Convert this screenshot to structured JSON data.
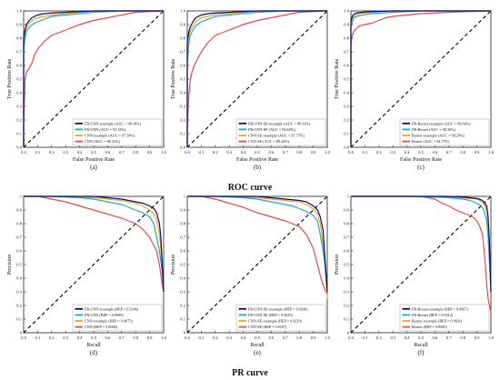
{
  "section_titles": {
    "roc": "ROC curve",
    "pr": "PR curve"
  },
  "colors": {
    "s1": "#0a0a6e",
    "s2": "#23a9bd",
    "s3": "#f2a629",
    "s4": "#e84a4a",
    "diagonal": "#000000"
  },
  "chart_data": [
    {
      "type": "line",
      "tag": "(a)",
      "curve": "roc",
      "xlabel": "False Positive Rate",
      "ylabel": "True Positive Rate",
      "xlim": [
        0,
        1
      ],
      "ylim": [
        0,
        1
      ],
      "legend": "bottom-right",
      "grid": false,
      "x_ticks": [
        "0.0",
        "0.1",
        "0.2",
        "0.3",
        "0.4",
        "0.5",
        "0.6",
        "0.7",
        "0.8",
        "0.9",
        "1.0"
      ],
      "y_ticks": [
        "0.0",
        "0.1",
        "0.2",
        "0.3",
        "0.4",
        "0.5",
        "0.6",
        "0.7",
        "0.8",
        "0.9",
        "1.0"
      ],
      "series": [
        {
          "name": "FR-CNN-resample  (AUC = 98.18%)",
          "x": [
            0,
            0,
            0.01,
            0.02,
            0.04,
            0.06,
            0.1,
            0.15,
            0.2,
            0.3,
            0.4,
            0.5,
            0.7,
            1.0
          ],
          "y": [
            0,
            0.8,
            0.86,
            0.9,
            0.93,
            0.95,
            0.97,
            0.98,
            0.985,
            0.99,
            0.995,
            1,
            1,
            1
          ]
        },
        {
          "name": "FR-CNN  (AUC = 93.33%)",
          "x": [
            0,
            0,
            0.01,
            0.02,
            0.04,
            0.06,
            0.1,
            0.15,
            0.2,
            0.3,
            0.4,
            0.5,
            0.7,
            1.0
          ],
          "y": [
            0,
            0.7,
            0.8,
            0.85,
            0.88,
            0.9,
            0.92,
            0.94,
            0.96,
            0.97,
            0.98,
            0.99,
            1,
            1
          ]
        },
        {
          "name": "CNN-resample  (AUC = 97.34%)",
          "x": [
            0,
            0,
            0.01,
            0.02,
            0.04,
            0.06,
            0.1,
            0.15,
            0.2,
            0.3,
            0.4,
            0.5,
            0.7,
            1.0
          ],
          "y": [
            0,
            0.78,
            0.84,
            0.88,
            0.91,
            0.93,
            0.95,
            0.96,
            0.97,
            0.98,
            0.99,
            1,
            1,
            1
          ]
        },
        {
          "name": "CNN  (AUC = 88.52%)",
          "x": [
            0,
            0,
            0.01,
            0.02,
            0.04,
            0.06,
            0.08,
            0.1,
            0.15,
            0.2,
            0.3,
            0.4,
            0.5,
            0.6,
            0.7,
            0.8,
            1.0
          ],
          "y": [
            0,
            0.15,
            0.5,
            0.55,
            0.58,
            0.62,
            0.68,
            0.72,
            0.78,
            0.82,
            0.86,
            0.9,
            0.93,
            0.95,
            0.97,
            0.99,
            1
          ]
        }
      ]
    },
    {
      "type": "line",
      "tag": "(b)",
      "curve": "roc",
      "xlabel": "False Positive Rate",
      "ylabel": "True Positive Rate",
      "xlim": [
        0,
        1
      ],
      "ylim": [
        0,
        1
      ],
      "legend": "bottom-right",
      "grid": false,
      "x_ticks": [
        "0.0",
        "0.1",
        "0.2",
        "0.3",
        "0.4",
        "0.5",
        "0.6",
        "0.7",
        "0.8",
        "0.9",
        "1.0"
      ],
      "y_ticks": [
        "0.0",
        "0.1",
        "0.2",
        "0.3",
        "0.4",
        "0.5",
        "0.6",
        "0.7",
        "0.8",
        "0.9",
        "1.0"
      ],
      "series": [
        {
          "name": "FR-CNN-SE-resample  (AUC = 98.33%)",
          "x": [
            0,
            0,
            0.01,
            0.02,
            0.04,
            0.06,
            0.1,
            0.15,
            0.2,
            0.3,
            0.4,
            0.5,
            0.7,
            1.0
          ],
          "y": [
            0,
            0.78,
            0.84,
            0.88,
            0.92,
            0.95,
            0.97,
            0.98,
            0.985,
            0.99,
            0.995,
            1,
            1,
            1
          ]
        },
        {
          "name": "FR-CNN-SE  (AUC = 96.65%)",
          "x": [
            0,
            0,
            0.01,
            0.02,
            0.04,
            0.06,
            0.1,
            0.15,
            0.2,
            0.3,
            0.4,
            0.5,
            0.7,
            1.0
          ],
          "y": [
            0,
            0.6,
            0.75,
            0.82,
            0.86,
            0.89,
            0.92,
            0.94,
            0.96,
            0.97,
            0.98,
            0.99,
            1,
            1
          ]
        },
        {
          "name": "CNN-SE-resample  (AUC = 97.77%)",
          "x": [
            0,
            0,
            0.01,
            0.02,
            0.04,
            0.06,
            0.1,
            0.15,
            0.2,
            0.3,
            0.4,
            0.5,
            0.7,
            1.0
          ],
          "y": [
            0,
            0.72,
            0.8,
            0.85,
            0.89,
            0.92,
            0.95,
            0.96,
            0.975,
            0.98,
            0.99,
            1,
            1,
            1
          ]
        },
        {
          "name": "CNN-SE  (AUC = 89.43%)",
          "x": [
            0,
            0,
            0.01,
            0.02,
            0.03,
            0.05,
            0.08,
            0.1,
            0.15,
            0.2,
            0.3,
            0.4,
            0.5,
            0.6,
            0.7,
            0.8,
            1.0
          ],
          "y": [
            0,
            0.12,
            0.36,
            0.48,
            0.54,
            0.6,
            0.66,
            0.7,
            0.77,
            0.82,
            0.86,
            0.9,
            0.93,
            0.95,
            0.97,
            0.99,
            1
          ]
        }
      ]
    },
    {
      "type": "line",
      "tag": "(c)",
      "curve": "roc",
      "xlabel": "False Positive Rate",
      "ylabel": "True Positive Rate",
      "xlim": [
        0,
        1
      ],
      "ylim": [
        0,
        1
      ],
      "legend": "bottom-right",
      "grid": false,
      "x_ticks": [
        "0.0",
        "0.1",
        "0.2",
        "0.3",
        "0.4",
        "0.5",
        "0.6",
        "0.7",
        "0.8",
        "0.9",
        "1.0"
      ],
      "y_ticks": [
        "0.0",
        "0.1",
        "0.2",
        "0.3",
        "0.4",
        "0.5",
        "0.6",
        "0.7",
        "0.8",
        "0.9",
        "1.0"
      ],
      "series": [
        {
          "name": "FR-Resnet-resample  (AUC = 99.64%)",
          "x": [
            0,
            0,
            0.01,
            0.02,
            0.04,
            0.08,
            0.15,
            0.3,
            0.5,
            1.0
          ],
          "y": [
            0,
            0.93,
            0.96,
            0.975,
            0.985,
            0.99,
            0.995,
            1,
            1,
            1
          ]
        },
        {
          "name": "FR-Resnet  (AUC = 98.30%)",
          "x": [
            0,
            0,
            0.01,
            0.02,
            0.04,
            0.08,
            0.15,
            0.3,
            0.5,
            1.0
          ],
          "y": [
            0,
            0.88,
            0.92,
            0.95,
            0.96,
            0.97,
            0.98,
            0.99,
            1,
            1
          ]
        },
        {
          "name": "Resnet-resample  (AUC = 99.29%)",
          "x": [
            0,
            0,
            0.01,
            0.02,
            0.04,
            0.08,
            0.15,
            0.3,
            0.5,
            1.0
          ],
          "y": [
            0,
            0.9,
            0.94,
            0.96,
            0.975,
            0.985,
            0.99,
            1,
            1,
            1
          ]
        },
        {
          "name": "Resnet  (AUC = 94.37%)",
          "x": [
            0,
            0,
            0.01,
            0.02,
            0.04,
            0.06,
            0.1,
            0.15,
            0.2,
            0.25,
            0.3,
            0.4,
            0.5,
            0.7,
            1.0
          ],
          "y": [
            0,
            0.75,
            0.82,
            0.85,
            0.87,
            0.89,
            0.9,
            0.91,
            0.93,
            0.95,
            0.96,
            0.97,
            0.98,
            0.99,
            1
          ]
        }
      ]
    },
    {
      "type": "line",
      "tag": "(d)",
      "curve": "pr",
      "xlabel": "Recall",
      "ylabel": "Precision",
      "xlim": [
        0,
        1
      ],
      "ylim": [
        0,
        1
      ],
      "legend": "bottom-right",
      "grid": false,
      "x_ticks": [
        "0.0",
        "0.1",
        "0.2",
        "0.3",
        "0.4",
        "0.5",
        "0.6",
        "0.7",
        "0.8",
        "0.9",
        "1.0"
      ],
      "y_ticks": [
        "0",
        "0.1",
        "0.2",
        "0.3",
        "0.4",
        "0.5",
        "0.6",
        "0.7",
        "0.8",
        "0.9",
        "1"
      ],
      "series": [
        {
          "name": "FR-CNN-resample  (BEP = 0.9246)",
          "x": [
            0,
            0.3,
            0.5,
            0.6,
            0.7,
            0.8,
            0.85,
            0.9,
            0.93,
            0.95,
            0.97,
            0.98,
            0.99,
            1.0
          ],
          "y": [
            1,
            1,
            1,
            0.99,
            0.98,
            0.96,
            0.95,
            0.93,
            0.91,
            0.88,
            0.8,
            0.7,
            0.5,
            0.3
          ]
        },
        {
          "name": "FR-CNN  (BEP = 0.8999)",
          "x": [
            0,
            0.2,
            0.4,
            0.5,
            0.6,
            0.7,
            0.75,
            0.8,
            0.85,
            0.9,
            0.93,
            0.95,
            0.97,
            0.99,
            1.0
          ],
          "y": [
            1,
            1,
            0.99,
            0.98,
            0.96,
            0.94,
            0.92,
            0.9,
            0.88,
            0.85,
            0.8,
            0.7,
            0.6,
            0.45,
            0.3
          ]
        },
        {
          "name": "CNN-resample  (BEP = 0.9075)",
          "x": [
            0,
            0.3,
            0.5,
            0.6,
            0.7,
            0.8,
            0.85,
            0.9,
            0.93,
            0.95,
            0.97,
            0.99,
            1.0
          ],
          "y": [
            1,
            1,
            0.99,
            0.98,
            0.97,
            0.95,
            0.93,
            0.9,
            0.87,
            0.83,
            0.72,
            0.5,
            0.3
          ]
        },
        {
          "name": "CNN  (BEP = 0.8000)",
          "x": [
            0,
            0.1,
            0.2,
            0.3,
            0.4,
            0.5,
            0.6,
            0.7,
            0.75,
            0.8,
            0.85,
            0.9,
            0.95,
            0.97,
            0.99,
            1.0
          ],
          "y": [
            1,
            1,
            0.98,
            0.96,
            0.93,
            0.9,
            0.87,
            0.84,
            0.82,
            0.8,
            0.76,
            0.7,
            0.6,
            0.5,
            0.35,
            0.3
          ]
        }
      ]
    },
    {
      "type": "line",
      "tag": "(e)",
      "curve": "pr",
      "xlabel": "Recall",
      "ylabel": "Precision",
      "xlim": [
        0,
        1
      ],
      "ylim": [
        0,
        1
      ],
      "legend": "bottom-right",
      "grid": false,
      "x_ticks": [
        "0.0",
        "0.1",
        "0.2",
        "0.3",
        "0.4",
        "0.5",
        "0.6",
        "0.7",
        "0.8",
        "0.9",
        "1.0"
      ],
      "y_ticks": [
        "0",
        "0.1",
        "0.2",
        "0.3",
        "0.4",
        "0.5",
        "0.6",
        "0.7",
        "0.8",
        "0.9",
        "1"
      ],
      "series": [
        {
          "name": "FR-CNN-SE-resample  (BEP = 0.9246)",
          "x": [
            0,
            0.3,
            0.5,
            0.6,
            0.7,
            0.8,
            0.85,
            0.9,
            0.93,
            0.95,
            0.97,
            0.98,
            0.99,
            1.0
          ],
          "y": [
            1,
            1,
            1,
            0.99,
            0.98,
            0.97,
            0.96,
            0.93,
            0.9,
            0.85,
            0.75,
            0.6,
            0.45,
            0.3
          ]
        },
        {
          "name": "FR-CNN-SE  (BEP = 0.9035)",
          "x": [
            0,
            0.2,
            0.4,
            0.5,
            0.6,
            0.7,
            0.75,
            0.8,
            0.85,
            0.9,
            0.93,
            0.95,
            0.97,
            0.99,
            1.0
          ],
          "y": [
            1,
            1,
            0.99,
            0.98,
            0.96,
            0.94,
            0.93,
            0.91,
            0.89,
            0.86,
            0.82,
            0.72,
            0.6,
            0.45,
            0.3
          ]
        },
        {
          "name": "CNN-SE-resample  (BEP = 0.9229)",
          "x": [
            0,
            0.3,
            0.5,
            0.6,
            0.7,
            0.8,
            0.85,
            0.9,
            0.93,
            0.95,
            0.97,
            0.99,
            1.0
          ],
          "y": [
            1,
            1,
            0.99,
            0.98,
            0.97,
            0.96,
            0.94,
            0.91,
            0.87,
            0.8,
            0.65,
            0.4,
            0.25
          ]
        },
        {
          "name": "CNN-SE  (BEP = 0.8167)",
          "x": [
            0,
            0.1,
            0.2,
            0.3,
            0.4,
            0.5,
            0.6,
            0.7,
            0.75,
            0.8,
            0.85,
            0.9,
            0.93,
            0.95,
            0.97,
            0.99,
            1.0
          ],
          "y": [
            1,
            1,
            0.98,
            0.95,
            0.92,
            0.88,
            0.85,
            0.82,
            0.8,
            0.78,
            0.72,
            0.62,
            0.5,
            0.42,
            0.35,
            0.3,
            0.28
          ]
        }
      ]
    },
    {
      "type": "line",
      "tag": "(f)",
      "curve": "pr",
      "xlabel": "Recall",
      "ylabel": "Precision",
      "xlim": [
        0,
        1
      ],
      "ylim": [
        0,
        1
      ],
      "legend": "bottom-right",
      "grid": false,
      "x_ticks": [
        "0.0",
        "0.1",
        "0.2",
        "0.3",
        "0.4",
        "0.5",
        "0.6",
        "0.7",
        "0.8",
        "0.9",
        "1.0"
      ],
      "y_ticks": [
        "0",
        "0.1",
        "0.2",
        "0.3",
        "0.4",
        "0.5",
        "0.6",
        "0.7",
        "0.8",
        "0.9",
        "1"
      ],
      "series": [
        {
          "name": "FR-Resnet-resample  (BEP = 0.9667)",
          "x": [
            0,
            0.4,
            0.6,
            0.7,
            0.8,
            0.9,
            0.93,
            0.95,
            0.97,
            0.98,
            0.99,
            1.0
          ],
          "y": [
            1,
            1,
            1,
            1,
            0.995,
            0.985,
            0.975,
            0.96,
            0.93,
            0.85,
            0.65,
            0.3
          ]
        },
        {
          "name": "FR-Resnet  (BEP = 0.9312)",
          "x": [
            0,
            0.4,
            0.6,
            0.7,
            0.8,
            0.85,
            0.9,
            0.93,
            0.95,
            0.97,
            0.98,
            0.99,
            1.0
          ],
          "y": [
            1,
            1,
            0.995,
            0.99,
            0.98,
            0.97,
            0.95,
            0.93,
            0.9,
            0.82,
            0.7,
            0.5,
            0.3
          ]
        },
        {
          "name": "Resnet-resample  (BEP = 0.9601)",
          "x": [
            0,
            0.4,
            0.6,
            0.7,
            0.8,
            0.9,
            0.93,
            0.95,
            0.97,
            0.98,
            0.99,
            1.0
          ],
          "y": [
            1,
            1,
            1,
            0.995,
            0.99,
            0.98,
            0.965,
            0.95,
            0.9,
            0.8,
            0.6,
            0.3
          ]
        },
        {
          "name": "Resnet  (BEP = 0.8500)",
          "x": [
            0,
            0.5,
            0.6,
            0.65,
            0.7,
            0.75,
            0.8,
            0.85,
            0.88,
            0.9,
            0.92,
            0.94,
            0.95,
            0.96,
            0.97,
            0.98,
            1.0
          ],
          "y": [
            1,
            1,
            0.98,
            0.95,
            0.93,
            0.9,
            0.88,
            0.86,
            0.84,
            0.82,
            0.78,
            0.72,
            0.62,
            0.5,
            0.35,
            0.25,
            0.15
          ]
        }
      ]
    }
  ]
}
